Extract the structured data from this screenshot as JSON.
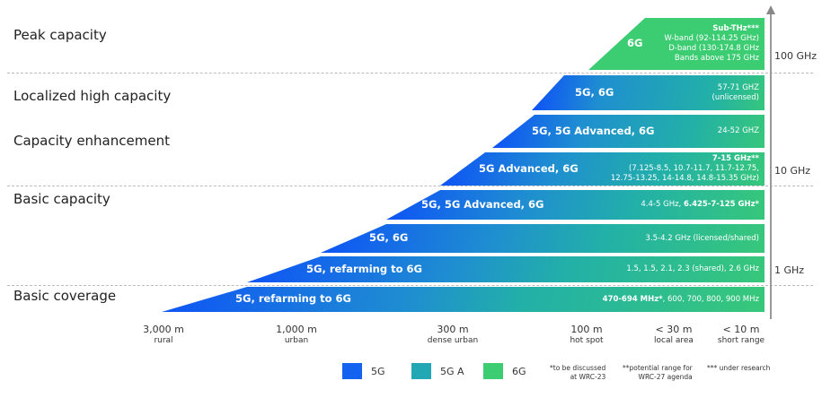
{
  "levels": [
    "Peak capacity",
    "Localized high capacity",
    "Capacity enhancement",
    "Basic capacity",
    "Basic coverage"
  ],
  "bands": [
    {
      "label": "6G",
      "title": "Sub-THz***",
      "lines": [
        "W-band (92-114.25 GHz)",
        "D-band (130-174.8 GHz",
        "Bands above 175 GHz"
      ]
    },
    {
      "label": "5G, 6G",
      "lines": [
        "57-71 GHZ",
        "(unlicensed)"
      ]
    },
    {
      "label": "5G, 5G Advanced, 6G",
      "lines": [
        "24-52 GHZ"
      ]
    },
    {
      "label": "5G Advanced, 6G",
      "title": "7-15 GHz**",
      "lines": [
        "(7.125-8.5, 10.7-11.7, 11.7-12.75,",
        "12.75-13.25, 14-14.8, 14.8-15.35 GHz)"
      ]
    },
    {
      "label": "5G, 5G Advanced, 6G",
      "pre": "4.4-5 GHz, ",
      "bold": "6.425-7-125 GHz*"
    },
    {
      "label": "5G, 6G",
      "lines": [
        "3.5-4.2 GHz (licensed/shared)"
      ]
    },
    {
      "label": "5G, refarming to 6G",
      "lines": [
        "1.5, 1.5, 2.1, 2.3 (shared), 2.6 GHz"
      ]
    },
    {
      "label": "5G, refarming to 6G",
      "bold": "470-694 MHz*",
      "pre": ", 600, 700, 800, 900 MHz"
    }
  ],
  "frequencies": [
    "100 GHz",
    "10 GHz",
    "1 GHz"
  ],
  "distances": [
    {
      "value": "3,000 m",
      "name": "rural"
    },
    {
      "value": "1,000 m",
      "name": "urban"
    },
    {
      "value": "300 m",
      "name": "dense urban"
    },
    {
      "value": "100 m",
      "name": "hot spot"
    },
    {
      "value": "< 30 m",
      "name": "local area"
    },
    {
      "value": "< 10 m",
      "name": "short range"
    }
  ],
  "legend": [
    {
      "label": "5G",
      "color": "#1462f0"
    },
    {
      "label": "5G A",
      "color": "#22a8b4"
    },
    {
      "label": "6G",
      "color": "#3ccc72"
    }
  ],
  "notes": [
    [
      "*to be discussed",
      "at WRC-23"
    ],
    [
      "**potential range for",
      "WRC-27 agenda"
    ],
    [
      "*** under research"
    ]
  ]
}
